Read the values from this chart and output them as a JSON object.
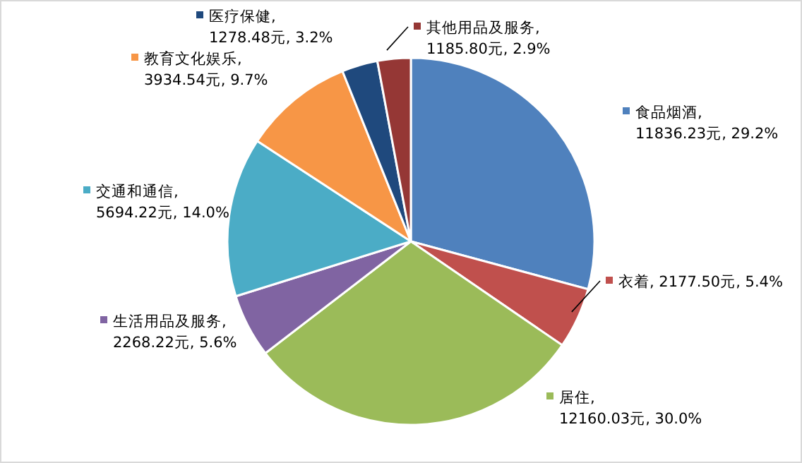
{
  "chart_data": {
    "type": "pie",
    "categories": [
      "食品烟酒",
      "衣着",
      "居住",
      "生活用品及服务",
      "交通和通信",
      "教育文化娱乐",
      "医疗保健",
      "其他用品及服务"
    ],
    "values": [
      11836.23,
      2177.5,
      12160.03,
      2268.22,
      5694.22,
      3934.54,
      1278.48,
      1185.8
    ],
    "value_labels": [
      ", 11836.23元, 29.2%",
      ", 2177.50元, 5.4%",
      ", 12160.03元, 30.0%",
      ", 2268.22元, 5.6%",
      ", 5694.22元, 14.0%",
      ", 3934.54元, 9.7%",
      ", 1278.48元, 3.2%",
      ", 1185.80元, 2.9%"
    ],
    "legend": "right",
    "colors": [
      "#4f81bd",
      "#c0504d",
      "#9bbb59",
      "#8064a2",
      "#4bacc6",
      "#f79646",
      "#1f497d",
      "#953735"
    ]
  }
}
